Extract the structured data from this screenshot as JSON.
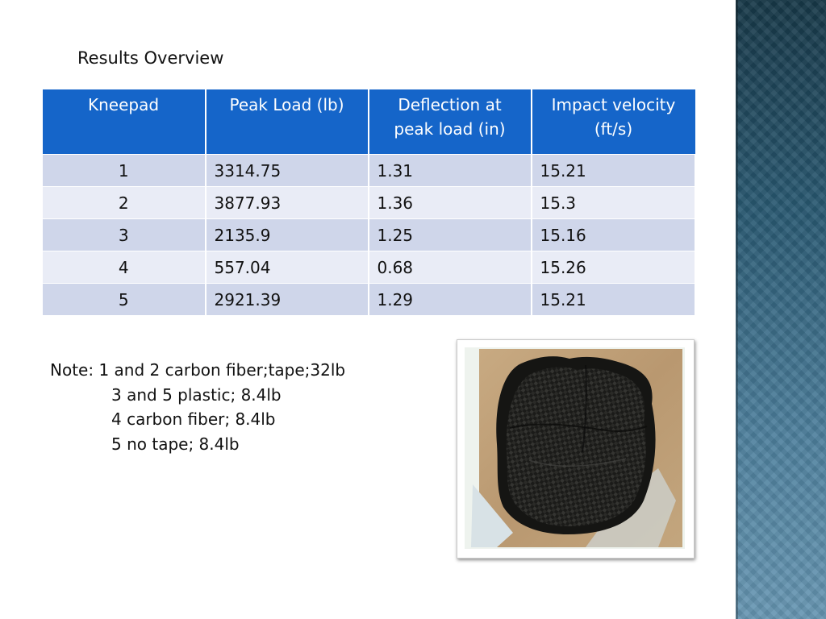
{
  "title": "Results Overview",
  "table": {
    "headers": [
      "Kneepad",
      "Peak Load (lb)",
      "Deflection at peak load (in)",
      "Impact velocity (ft/s)"
    ],
    "rows": [
      [
        "1",
        "3314.75",
        "1.31",
        "15.21"
      ],
      [
        "2",
        "3877.93",
        "1.36",
        "15.3"
      ],
      [
        "3",
        "2135.9",
        "1.25",
        "15.16"
      ],
      [
        "4",
        "557.04",
        "0.68",
        "15.26"
      ],
      [
        "5",
        "2921.39",
        "1.29",
        "15.21"
      ]
    ]
  },
  "note": {
    "lines": [
      "Note: 1 and 2 carbon fiber;tape;32lb",
      "3 and 5 plastic; 8.4lb",
      "4 carbon fiber; 8.4lb",
      "5 no tape; 8.4lb"
    ]
  },
  "colors": {
    "header_bg": "#1565c9",
    "row_dark": "#cfd6ea",
    "row_light": "#e9ecf6",
    "side_band": "#2a5a73"
  }
}
